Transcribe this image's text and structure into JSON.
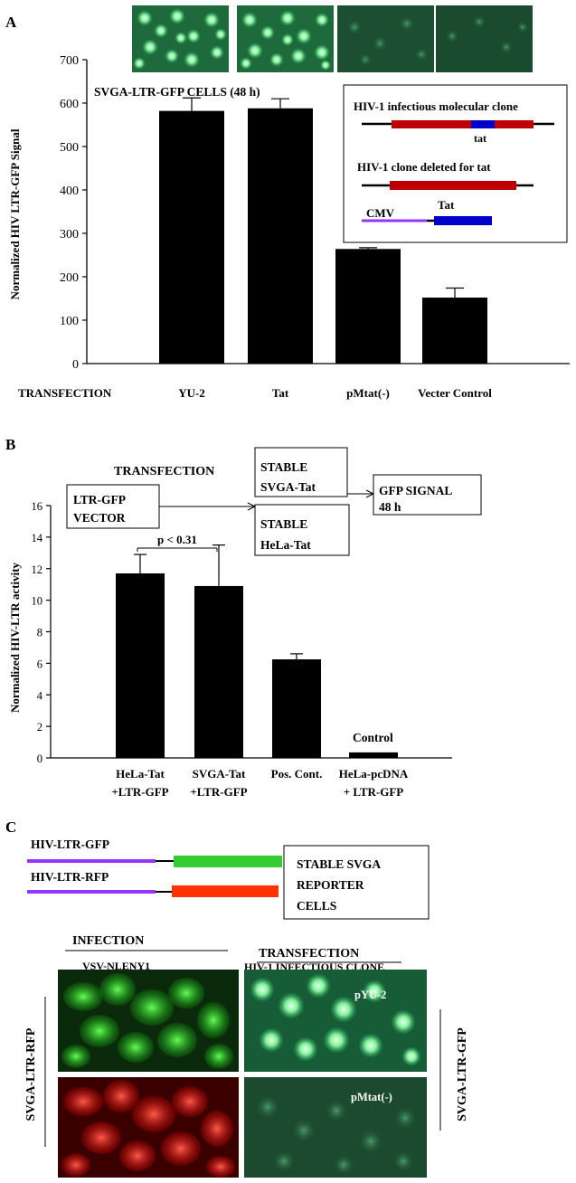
{
  "panels": {
    "a": {
      "letter": "A",
      "cell_label": "SVGA-LTR-GFP CELLS (48 h)",
      "transfection_label": "TRANSFECTION",
      "inset": {
        "clone_label": "HIV-1 infectious molecular clone",
        "tat_label": "tat",
        "deleted_label": "HIV-1 clone deleted for tat",
        "cmv_label": "CMV",
        "tat2_label": "Tat"
      }
    },
    "b": {
      "letter": "B",
      "transfection_label": "TRANSFECTION",
      "box_vector": [
        "LTR-GFP",
        "VECTOR"
      ],
      "box_svga": [
        "STABLE",
        "SVGA-Tat"
      ],
      "box_hela": [
        "STABLE",
        "HeLa-Tat"
      ],
      "box_signal": [
        "GFP SIGNAL",
        "48 h"
      ],
      "pvalue": "p < 0.31",
      "control_label": "Control"
    },
    "c": {
      "letter": "C",
      "construct_gfp": "HIV-LTR-GFP",
      "construct_rfp": "HIV-LTR-RFP",
      "reporter_box": [
        "STABLE SVGA",
        "REPORTER",
        "CELLS"
      ],
      "infection_label": "INFECTION",
      "virus_label": "VSV-NLENY1",
      "transfection_label": "TRANSFECTION",
      "clone_label": "HIV-1 INFECTIOUS CLONE",
      "pyu2_label": "pYU-2",
      "pmtat_label": "pMtat(-)",
      "left_side_label": "SVGA-LTR-RFP",
      "right_side_label": "SVGA-LTR-GFP"
    }
  },
  "colors": {
    "bar": "#000000",
    "genome": "#c00000",
    "tat": "#0000cc",
    "cmv": "#9933ff",
    "gfp": "#33cc33",
    "rfp": "#ff3300",
    "gfp_cell": "#22dd22",
    "rfp_cell": "#ff1a1a"
  },
  "chart_data": [
    {
      "type": "bar",
      "ylabel": "Normalized HIV LTR-GFP Signal",
      "ylim": [
        0,
        700
      ],
      "yticks": [
        "0",
        "100",
        "200",
        "300",
        "400",
        "500",
        "600",
        "700"
      ],
      "categories": [
        "YU-2",
        "Tat",
        "pMtat(-)",
        "Vecter Control"
      ],
      "values": [
        582,
        588,
        264,
        152
      ],
      "errors": [
        30,
        22,
        3,
        22
      ]
    },
    {
      "type": "bar",
      "ylabel": "Normalized HIV-LTR activity",
      "ylim": [
        0,
        16
      ],
      "yticks": [
        "0",
        "2",
        "4",
        "6",
        "8",
        "10",
        "12",
        "14",
        "16"
      ],
      "categories": [
        [
          "HeLa-Tat",
          "+LTR-GFP"
        ],
        [
          "SVGA-Tat",
          "+LTR-GFP"
        ],
        [
          "Pos. Cont."
        ],
        [
          "HeLa-pcDNA",
          "+ LTR-GFP"
        ]
      ],
      "values": [
        11.7,
        10.9,
        6.25,
        0.35
      ],
      "errors": [
        1.2,
        2.6,
        0.35,
        0
      ]
    }
  ]
}
